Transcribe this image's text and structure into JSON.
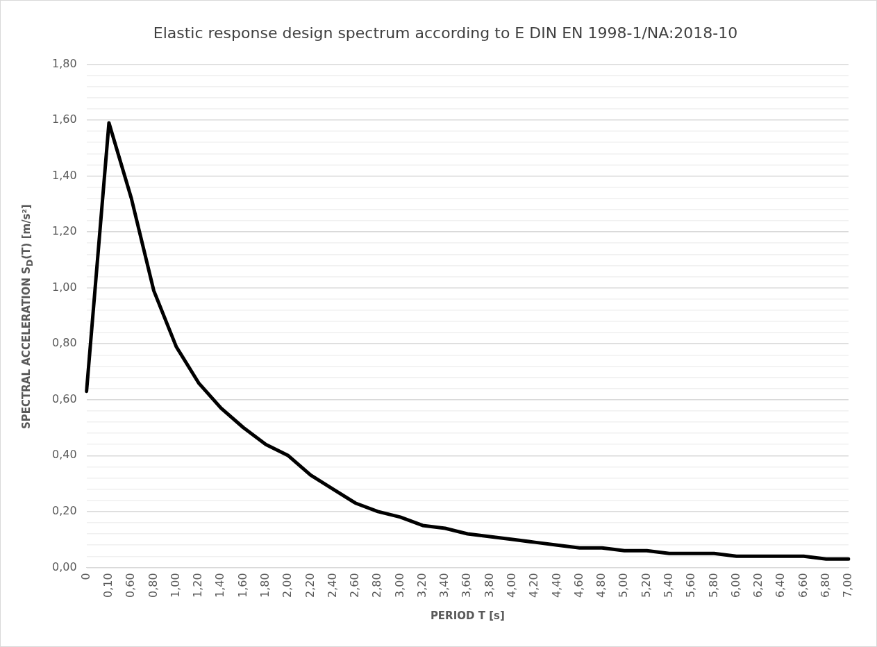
{
  "chart_data": {
    "type": "line",
    "title": "Elastic response design spectrum according to E DIN EN 1998-1/NA:2018-10",
    "xlabel": "PERIOD T [s]",
    "ylabel": "SPECTRAL ACCELERATION S$_{D}$(T) [m/s²]",
    "categories": [
      "0",
      "0,10",
      "0,60",
      "0,80",
      "1,00",
      "1,20",
      "1,40",
      "1,60",
      "1,80",
      "2,00",
      "2,20",
      "2,40",
      "2,60",
      "2,80",
      "3,00",
      "3,20",
      "3,40",
      "3,60",
      "3,80",
      "4,00",
      "4,20",
      "4,40",
      "4,60",
      "4,80",
      "5,00",
      "5,20",
      "5,40",
      "5,60",
      "5,80",
      "6,00",
      "6,20",
      "6,40",
      "6,60",
      "6,80",
      "7,00"
    ],
    "series": [
      {
        "color": "#000000",
        "values": [
          0.63,
          1.59,
          1.32,
          0.99,
          0.79,
          0.66,
          0.57,
          0.5,
          0.44,
          0.4,
          0.33,
          0.28,
          0.23,
          0.2,
          0.18,
          0.15,
          0.14,
          0.12,
          0.11,
          0.1,
          0.09,
          0.08,
          0.07,
          0.07,
          0.06,
          0.06,
          0.05,
          0.05,
          0.05,
          0.04,
          0.04,
          0.04,
          0.04,
          0.03,
          0.03
        ]
      }
    ],
    "ylim": [
      0,
      1.8
    ],
    "yticks": [
      {
        "value": 0,
        "label": "0,00"
      },
      {
        "value": 0.04,
        "label": null
      },
      {
        "value": 0.08,
        "label": null
      },
      {
        "value": 0.12,
        "label": null
      },
      {
        "value": 0.16,
        "label": null
      },
      {
        "value": 0.2,
        "label": "0,20"
      },
      {
        "value": 0.24,
        "label": null
      },
      {
        "value": 0.28,
        "label": null
      },
      {
        "value": 0.32,
        "label": null
      },
      {
        "value": 0.36,
        "label": null
      },
      {
        "value": 0.4,
        "label": "0,40"
      },
      {
        "value": 0.44,
        "label": null
      },
      {
        "value": 0.48,
        "label": null
      },
      {
        "value": 0.52,
        "label": null
      },
      {
        "value": 0.56,
        "label": null
      },
      {
        "value": 0.6,
        "label": "0,60"
      },
      {
        "value": 0.64,
        "label": null
      },
      {
        "value": 0.68,
        "label": null
      },
      {
        "value": 0.72,
        "label": null
      },
      {
        "value": 0.76,
        "label": null
      },
      {
        "value": 0.8,
        "label": "0,80"
      },
      {
        "value": 0.84,
        "label": null
      },
      {
        "value": 0.88,
        "label": null
      },
      {
        "value": 0.92,
        "label": null
      },
      {
        "value": 0.96,
        "label": null
      },
      {
        "value": 1.0,
        "label": "1,00"
      },
      {
        "value": 1.04,
        "label": null
      },
      {
        "value": 1.08,
        "label": null
      },
      {
        "value": 1.12,
        "label": null
      },
      {
        "value": 1.16,
        "label": null
      },
      {
        "value": 1.2,
        "label": "1,20"
      },
      {
        "value": 1.24,
        "label": null
      },
      {
        "value": 1.28,
        "label": null
      },
      {
        "value": 1.32,
        "label": null
      },
      {
        "value": 1.36,
        "label": null
      },
      {
        "value": 1.4,
        "label": "1,40"
      },
      {
        "value": 1.44,
        "label": null
      },
      {
        "value": 1.48,
        "label": null
      },
      {
        "value": 1.52,
        "label": null
      },
      {
        "value": 1.56,
        "label": null
      },
      {
        "value": 1.6,
        "label": "1,60"
      },
      {
        "value": 1.64,
        "label": null
      },
      {
        "value": 1.68,
        "label": null
      },
      {
        "value": 1.72,
        "label": null
      },
      {
        "value": 1.76,
        "label": null
      },
      {
        "value": 1.8,
        "label": "1,80"
      }
    ],
    "grid": "y",
    "legend": false,
    "marker": "none",
    "line_style": "solid"
  }
}
